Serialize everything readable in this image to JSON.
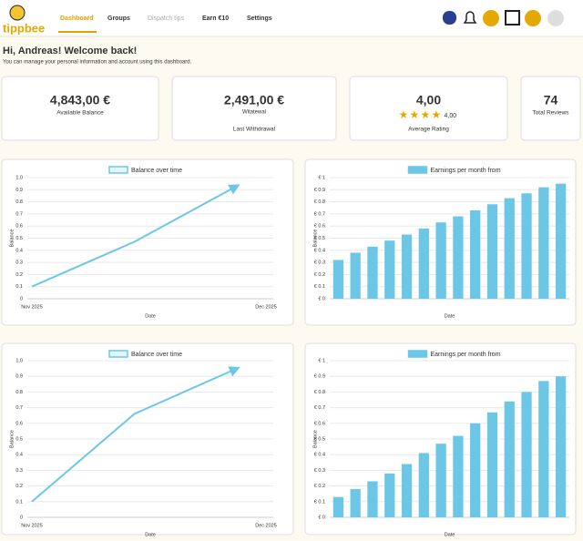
{
  "nav": {
    "logo": "tippbee",
    "items": [
      "Dashboard",
      "Groups",
      "Dispatch tips",
      "Earn €10",
      "Settings"
    ]
  },
  "greeting": {
    "title": "Hi, Andreas! Welcome back!",
    "subtitle": "You can manage your personal information and account using this dashboard."
  },
  "stats": [
    {
      "value": "4,843,00 €",
      "label": "Available Balance"
    },
    {
      "value": "2,491,00 €",
      "note": "Witatewal",
      "label": "Last Withdrawal"
    },
    {
      "value": "4,00",
      "rating": "4,00",
      "label": "Average Rating"
    },
    {
      "value": "74",
      "label": "Total Reviews"
    }
  ],
  "chart_data": [
    {
      "type": "line",
      "series": [
        {
          "name": "Balance over time",
          "color": "#6cc7e6",
          "values": [
            0.1,
            0.47,
            0.93
          ]
        }
      ],
      "categories": [
        "Nov 2025",
        null,
        "Dec 2025"
      ],
      "ylabel": "Balance",
      "xlabel": "Date",
      "ylim": [
        0,
        1
      ],
      "yticks": [
        0,
        0.1,
        0.2,
        0.3,
        0.4,
        0.5,
        0.6,
        0.7,
        0.8,
        0.9,
        {
          "value": 1,
          "label": "1.0"
        }
      ],
      "grid": true
    },
    {
      "type": "bar",
      "series": [
        {
          "name": "Earnings per month from",
          "color": "#6cc7e6",
          "values": [
            0.32,
            0.38,
            0.43,
            0.48,
            0.53,
            0.58,
            0.63,
            0.68,
            0.73,
            0.78,
            0.83,
            0.87,
            0.92,
            0.95
          ]
        }
      ],
      "categories": [
        null,
        null,
        null,
        null,
        null,
        null,
        null,
        null,
        null,
        null,
        null,
        null,
        null,
        null
      ],
      "ylabel": "Balance",
      "xlabel": "Date",
      "ylim": [
        0,
        1
      ],
      "yticks": [
        {
          "value": 0,
          "label": "€ 0"
        },
        {
          "value": 0.1,
          "label": "€ 0.1"
        },
        {
          "value": 0.2,
          "label": "€ 0.2"
        },
        {
          "value": 0.3,
          "label": "€ 0.3"
        },
        {
          "value": 0.4,
          "label": "€ 0.4"
        },
        {
          "value": 0.5,
          "label": "€ 0.5"
        },
        {
          "value": 0.6,
          "label": "€ 0.6"
        },
        {
          "value": 0.7,
          "label": "€ 0.7"
        },
        {
          "value": 0.8,
          "label": "€ 0.8"
        },
        {
          "value": 0.9,
          "label": "€ 0.9"
        },
        {
          "value": 1,
          "label": "€ 1"
        }
      ],
      "grid": true
    },
    {
      "type": "line",
      "series": [
        {
          "name": "Balance over time",
          "color": "#6cc7e6",
          "values": [
            0.1,
            0.66,
            0.95
          ]
        }
      ],
      "categories": [
        "Nov 2025",
        null,
        "Dec 2025"
      ],
      "ylabel": "Balance",
      "xlabel": "Date",
      "ylim": [
        0,
        1
      ],
      "yticks": [
        0,
        0.1,
        0.2,
        0.3,
        0.4,
        0.5,
        0.6,
        0.7,
        0.8,
        0.9,
        {
          "value": 1,
          "label": "1.0"
        }
      ],
      "grid": true
    },
    {
      "type": "bar",
      "series": [
        {
          "name": "Earnings per month from",
          "color": "#6cc7e6",
          "values": [
            0.13,
            0.18,
            0.23,
            0.28,
            0.34,
            0.41,
            0.47,
            0.52,
            0.6,
            0.67,
            0.74,
            0.8,
            0.87,
            0.9
          ]
        }
      ],
      "categories": [
        null,
        null,
        null,
        null,
        null,
        null,
        null,
        null,
        null,
        null,
        null,
        null,
        null,
        null
      ],
      "ylabel": "Balance",
      "xlabel": "Date",
      "ylim": [
        0,
        1
      ],
      "yticks": [
        {
          "value": 0,
          "label": "€ 0"
        },
        {
          "value": 0.1,
          "label": "€ 0.1"
        },
        {
          "value": 0.2,
          "label": "€ 0.2"
        },
        {
          "value": 0.3,
          "label": "€ 0.3"
        },
        {
          "value": 0.4,
          "label": "€ 0.4"
        },
        {
          "value": 0.5,
          "label": "€ 0.5"
        },
        {
          "value": 0.6,
          "label": "€ 0.6"
        },
        {
          "value": 0.7,
          "label": "€ 0.7"
        },
        {
          "value": 0.8,
          "label": "€ 0.8"
        },
        {
          "value": 0.9,
          "label": "€ 0.9"
        },
        {
          "value": 1,
          "label": "€ 1"
        }
      ],
      "grid": true
    }
  ]
}
